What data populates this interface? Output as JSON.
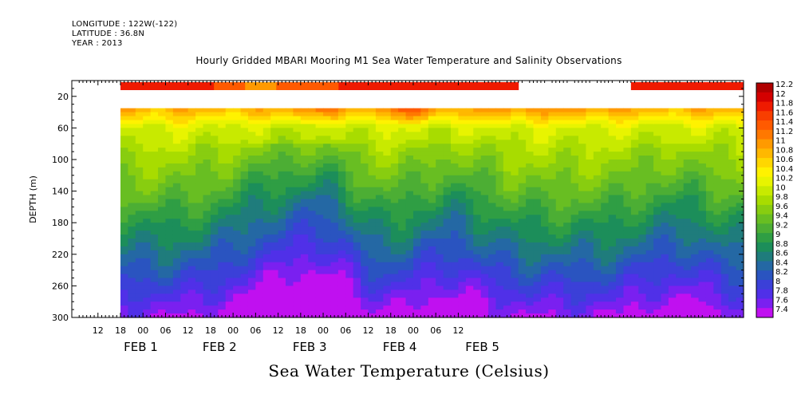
{
  "header": {
    "longitude": "LONGITUDE : 122W(-122)",
    "latitude": "LATITUDE : 36.8N",
    "year": "YEAR : 2013"
  },
  "chart_data": {
    "type": "heatmap",
    "title": "Hourly Gridded MBARI Mooring M1 Sea Water Temperature and Salinity Observations",
    "bottom_title": "Sea Water Temperature (Celsius)",
    "ylabel": "DEPTH (m)",
    "y_reversed": true,
    "ylim": [
      300,
      0
    ],
    "y_ticks": [
      20,
      60,
      100,
      140,
      180,
      220,
      260,
      300
    ],
    "x_hour_ticks": [
      "12",
      "18",
      "00",
      "06",
      "12",
      "18",
      "00",
      "06",
      "12",
      "18",
      "00",
      "06",
      "12",
      "18",
      "00",
      "06",
      "12"
    ],
    "x_day_labels": [
      "FEB  1",
      "FEB  2",
      "FEB  3",
      "FEB  4",
      "FEB  5"
    ],
    "colorbar_labels": [
      "12.2",
      "12",
      "11.8",
      "11.6",
      "11.4",
      "11.2",
      "11",
      "10.8",
      "10.6",
      "10.4",
      "10.2",
      "10",
      "9.8",
      "9.6",
      "9.4",
      "9.2",
      "9",
      "8.8",
      "8.6",
      "8.4",
      "8.2",
      "8",
      "7.8",
      "7.6",
      "7.4"
    ],
    "colorbar_colors": [
      "#b00000",
      "#d40000",
      "#ef1a00",
      "#f83e00",
      "#ff5a00",
      "#ff7800",
      "#ff9a00",
      "#ffb800",
      "#ffd700",
      "#fff200",
      "#e8f400",
      "#c8ea00",
      "#a8dc00",
      "#88cd10",
      "#68be22",
      "#4cae34",
      "#2f9e44",
      "#1c8e5a",
      "#1f7c7c",
      "#2468a4",
      "#2a54c0",
      "#3b40d8",
      "#5030e8",
      "#7a20f0",
      "#c010f0"
    ],
    "depth_values": [
      35,
      60,
      100,
      140,
      180,
      220,
      260,
      300
    ],
    "surface_depth_m": 10,
    "surface_temp": [
      11.8,
      11.8,
      11.8,
      11.6,
      11.2,
      11.4,
      11.6,
      11.8,
      11.8,
      11.8,
      12.0,
      11.9,
      11.8,
      12.0,
      11.9,
      11.7,
      11.8,
      11.8,
      11.8,
      11.8
    ],
    "surface_gap_hours": [
      106,
      136
    ],
    "time_start_hours": 0,
    "time_end_hours": 166,
    "time_step_hours": 2,
    "profile_notes": "warm top ~10.8-11.2C near 35m, ~9.6C around 140m, ~8.6C near 220m, ~7.6-7.8C at 300m; depressed isotherms (colder water higher) near Feb 2 06h and Feb 3 00h"
  }
}
